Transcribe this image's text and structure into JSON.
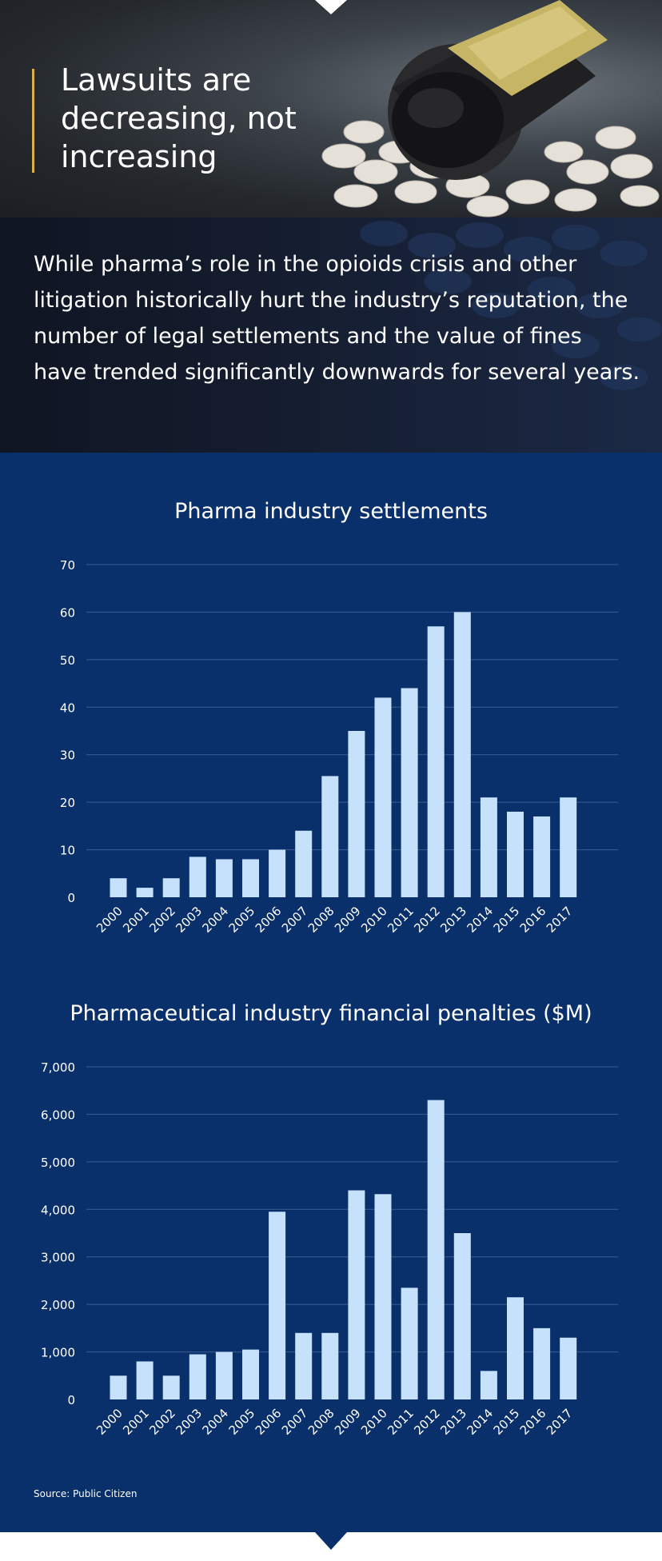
{
  "hero": {
    "title": "Lawsuits are decreasing, not increasing"
  },
  "intro": {
    "text": "While pharma’s role in the opioids crisis and other litigation historically hurt the industry’s reputation, the number of legal settlements and the value of fines have trended significantly downwards for several years."
  },
  "colors": {
    "accent": "#d8b046",
    "chart_background": "#0a306b",
    "bar": "#c5e1fb",
    "gridline": "#3d5d90"
  },
  "chart_data": [
    {
      "type": "bar",
      "title": "Pharma industry settlements",
      "xlabel": "",
      "ylabel": "",
      "categories": [
        "2000",
        "2001",
        "2002",
        "2003",
        "2004",
        "2005",
        "2006",
        "2007",
        "2008",
        "2009",
        "2010",
        "2011",
        "2012",
        "2013",
        "2014",
        "2015",
        "2016",
        "2017"
      ],
      "values": [
        4,
        2,
        4,
        8.5,
        8,
        8,
        10,
        14,
        25.5,
        35,
        42,
        44,
        57,
        60,
        21,
        18,
        17,
        21
      ],
      "ylim": [
        0,
        70
      ],
      "yticks": [
        0,
        10,
        20,
        30,
        40,
        50,
        60,
        70
      ],
      "ytick_labels": [
        "0",
        "10",
        "20",
        "30",
        "40",
        "50",
        "60",
        "70"
      ],
      "grid": true,
      "legend": "none"
    },
    {
      "type": "bar",
      "title": "Pharmaceutical industry financial penalties ($M)",
      "xlabel": "",
      "ylabel": "",
      "categories": [
        "2000",
        "2001",
        "2002",
        "2003",
        "2004",
        "2005",
        "2006",
        "2007",
        "2008",
        "2009",
        "2010",
        "2011",
        "2012",
        "2013",
        "2014",
        "2015",
        "2016",
        "2017"
      ],
      "values": [
        500,
        800,
        500,
        950,
        1000,
        1050,
        3950,
        1400,
        1400,
        4400,
        4320,
        2350,
        6300,
        3500,
        600,
        2150,
        1500,
        1300
      ],
      "ylim": [
        0,
        7000
      ],
      "yticks": [
        0,
        1000,
        2000,
        3000,
        4000,
        5000,
        6000,
        7000
      ],
      "ytick_labels": [
        "0",
        "1,000",
        "2,000",
        "3,000",
        "4,000",
        "5,000",
        "6,000",
        "7,000"
      ],
      "grid": true,
      "legend": "none"
    }
  ],
  "source": "Source: Public Citizen"
}
